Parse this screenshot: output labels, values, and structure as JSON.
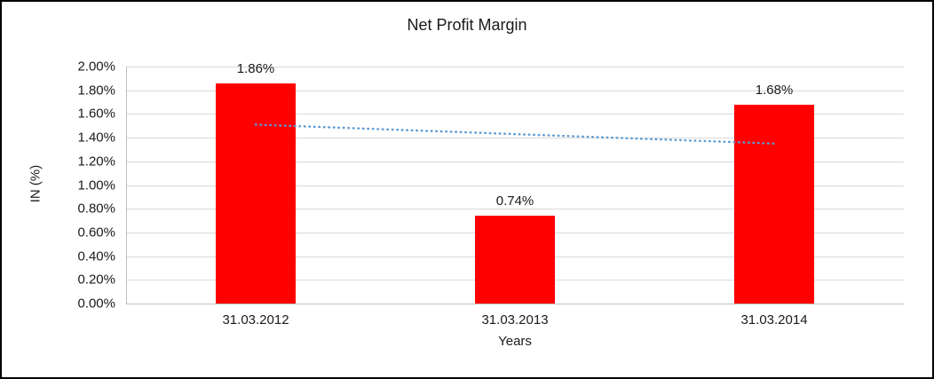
{
  "chart_data": {
    "type": "bar",
    "title": "Net Profit Margin",
    "xlabel": "Years",
    "ylabel": "IN (%)",
    "categories": [
      "31.03.2012",
      "31.03.2013",
      "31.03.2014"
    ],
    "values": [
      1.86,
      0.74,
      1.68
    ],
    "data_labels": [
      "1.86%",
      "0.74%",
      "1.68%"
    ],
    "ylim": [
      0,
      2.0
    ],
    "yticks": [
      {
        "value": 0.0,
        "label": "0.00%"
      },
      {
        "value": 0.2,
        "label": "0.20%"
      },
      {
        "value": 0.4,
        "label": "0.40%"
      },
      {
        "value": 0.6,
        "label": "0.60%"
      },
      {
        "value": 0.8,
        "label": "0.80%"
      },
      {
        "value": 1.0,
        "label": "1.00%"
      },
      {
        "value": 1.2,
        "label": "1.20%"
      },
      {
        "value": 1.4,
        "label": "1.40%"
      },
      {
        "value": 1.6,
        "label": "1.60%"
      },
      {
        "value": 1.8,
        "label": "1.80%"
      },
      {
        "value": 2.0,
        "label": "2.00%"
      }
    ],
    "grid": true,
    "legend": "none",
    "bar_color": "#ff0000",
    "trendline": {
      "style": "dotted",
      "color": "#5b9bd5",
      "start_value": 1.51,
      "end_value": 1.35
    }
  }
}
